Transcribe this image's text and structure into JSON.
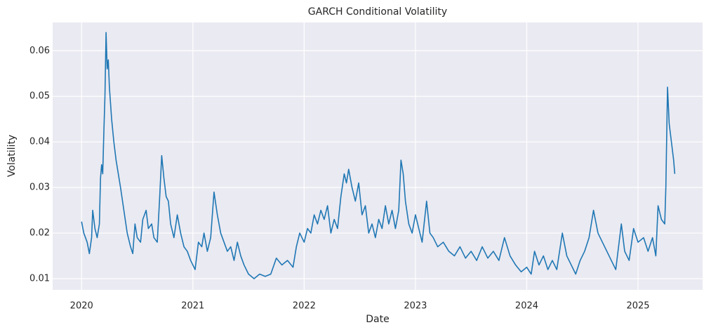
{
  "chart_data": {
    "type": "line",
    "title": "GARCH Conditional Volatility",
    "x_label": "Date",
    "y_label": "Volatility",
    "color": "#1f77b4",
    "grid": true,
    "xlim": [
      2019.74,
      2025.58
    ],
    "xticks": [
      2020,
      2021,
      2022,
      2023,
      2024,
      2025
    ],
    "ylim": [
      0.00754,
      0.0662
    ],
    "yticks": [
      0.01,
      0.02,
      0.03,
      0.04,
      0.05,
      0.06
    ],
    "x": [
      2020.0,
      2020.02,
      2020.05,
      2020.07,
      2020.09,
      2020.1,
      2020.12,
      2020.14,
      2020.16,
      2020.17,
      2020.18,
      2020.19,
      2020.2,
      2020.21,
      2020.22,
      2020.23,
      2020.24,
      2020.25,
      2020.27,
      2020.29,
      2020.31,
      2020.33,
      2020.35,
      2020.38,
      2020.41,
      2020.44,
      2020.46,
      2020.48,
      2020.5,
      2020.53,
      2020.55,
      2020.58,
      2020.6,
      2020.63,
      2020.65,
      2020.68,
      2020.7,
      2020.72,
      2020.74,
      2020.76,
      2020.78,
      2020.8,
      2020.83,
      2020.86,
      2020.89,
      2020.92,
      2020.95,
      2020.98,
      2021.02,
      2021.05,
      2021.08,
      2021.1,
      2021.13,
      2021.16,
      2021.19,
      2021.22,
      2021.25,
      2021.28,
      2021.31,
      2021.34,
      2021.37,
      2021.4,
      2021.43,
      2021.46,
      2021.5,
      2021.55,
      2021.6,
      2021.65,
      2021.7,
      2021.75,
      2021.8,
      2021.85,
      2021.9,
      2021.93,
      2021.96,
      2022.0,
      2022.03,
      2022.06,
      2022.09,
      2022.12,
      2022.15,
      2022.18,
      2022.21,
      2022.24,
      2022.27,
      2022.3,
      2022.33,
      2022.36,
      2022.38,
      2022.4,
      2022.43,
      2022.46,
      2022.49,
      2022.52,
      2022.55,
      2022.58,
      2022.61,
      2022.64,
      2022.67,
      2022.7,
      2022.73,
      2022.76,
      2022.79,
      2022.82,
      2022.85,
      2022.87,
      2022.89,
      2022.91,
      2022.94,
      2022.97,
      2023.0,
      2023.03,
      2023.06,
      2023.1,
      2023.13,
      2023.16,
      2023.2,
      2023.25,
      2023.3,
      2023.35,
      2023.4,
      2023.45,
      2023.5,
      2023.55,
      2023.6,
      2023.65,
      2023.7,
      2023.75,
      2023.8,
      2023.85,
      2023.9,
      2023.95,
      2024.0,
      2024.04,
      2024.07,
      2024.11,
      2024.15,
      2024.19,
      2024.23,
      2024.27,
      2024.32,
      2024.36,
      2024.4,
      2024.44,
      2024.48,
      2024.52,
      2024.56,
      2024.6,
      2024.64,
      2024.68,
      2024.72,
      2024.76,
      2024.8,
      2024.85,
      2024.88,
      2024.92,
      2024.96,
      2025.0,
      2025.05,
      2025.09,
      2025.13,
      2025.16,
      2025.18,
      2025.21,
      2025.24,
      2025.25,
      2025.265,
      2025.28,
      2025.3,
      2025.32,
      2025.33
    ],
    "values": [
      0.0225,
      0.02,
      0.018,
      0.0155,
      0.019,
      0.025,
      0.021,
      0.019,
      0.022,
      0.032,
      0.035,
      0.033,
      0.042,
      0.05,
      0.064,
      0.056,
      0.058,
      0.052,
      0.045,
      0.04,
      0.036,
      0.033,
      0.03,
      0.025,
      0.02,
      0.017,
      0.0155,
      0.022,
      0.019,
      0.018,
      0.023,
      0.025,
      0.021,
      0.022,
      0.019,
      0.018,
      0.027,
      0.037,
      0.032,
      0.028,
      0.027,
      0.022,
      0.019,
      0.024,
      0.02,
      0.017,
      0.016,
      0.014,
      0.012,
      0.018,
      0.017,
      0.02,
      0.016,
      0.019,
      0.029,
      0.024,
      0.02,
      0.018,
      0.016,
      0.017,
      0.014,
      0.018,
      0.015,
      0.013,
      0.011,
      0.01,
      0.011,
      0.0105,
      0.011,
      0.0145,
      0.013,
      0.014,
      0.0125,
      0.017,
      0.02,
      0.018,
      0.021,
      0.02,
      0.024,
      0.022,
      0.025,
      0.023,
      0.026,
      0.02,
      0.023,
      0.021,
      0.028,
      0.033,
      0.031,
      0.034,
      0.03,
      0.027,
      0.031,
      0.024,
      0.026,
      0.02,
      0.022,
      0.019,
      0.023,
      0.021,
      0.026,
      0.022,
      0.025,
      0.021,
      0.025,
      0.036,
      0.033,
      0.027,
      0.022,
      0.02,
      0.024,
      0.021,
      0.018,
      0.027,
      0.02,
      0.019,
      0.017,
      0.018,
      0.016,
      0.015,
      0.017,
      0.0145,
      0.016,
      0.014,
      0.017,
      0.0145,
      0.016,
      0.014,
      0.019,
      0.015,
      0.013,
      0.0115,
      0.0125,
      0.011,
      0.016,
      0.013,
      0.015,
      0.012,
      0.014,
      0.012,
      0.02,
      0.015,
      0.013,
      0.011,
      0.014,
      0.016,
      0.019,
      0.025,
      0.02,
      0.018,
      0.016,
      0.014,
      0.012,
      0.022,
      0.016,
      0.014,
      0.021,
      0.018,
      0.019,
      0.016,
      0.019,
      0.015,
      0.026,
      0.023,
      0.022,
      0.03,
      0.052,
      0.044,
      0.04,
      0.036,
      0.033
    ]
  }
}
